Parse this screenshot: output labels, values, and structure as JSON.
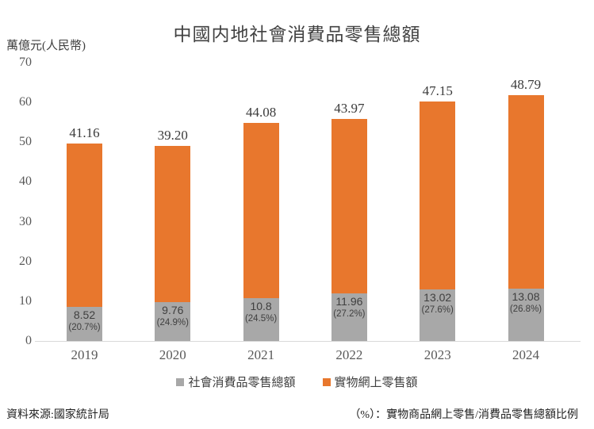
{
  "chart": {
    "title": "中國内地社會消費品零售總額",
    "y_unit_label": "萬億元(人民幣)"
  },
  "footer": {
    "source": "資料來源:國家統計局",
    "note": "（%）：實物商品網上零售/消費品零售總額比例"
  },
  "colors": {
    "orange": "#e8772d",
    "gray": "#a8a8a8",
    "axis_line": "#d9d9d9",
    "tick_text": "#595959",
    "label_text": "#3f3f3f"
  },
  "chart_data": {
    "type": "bar",
    "stacked": true,
    "title": "中國内地社會消費品零售總額",
    "xlabel": "",
    "ylabel": "萬億元(人民幣)",
    "ylim": [
      0,
      70
    ],
    "yticks": [
      0,
      10,
      20,
      30,
      40,
      50,
      60,
      70
    ],
    "grid": false,
    "legend_position": "bottom",
    "categories": [
      "2019",
      "2020",
      "2021",
      "2022",
      "2023",
      "2024"
    ],
    "series": [
      {
        "name": "社會消費品零售總額",
        "color": "gray",
        "values": [
          8.52,
          9.76,
          10.8,
          11.96,
          13.02,
          13.08
        ],
        "labels": [
          "8.52",
          "9.76",
          "10.8",
          "11.96",
          "13.02",
          "13.08"
        ],
        "pct_labels": [
          "(20.7%)",
          "(24.9%)",
          "(24.5%)",
          "(27.2%)",
          "(27.6%)",
          "(26.8%)"
        ]
      },
      {
        "name": "實物網上零售額",
        "color": "orange",
        "values": [
          41.16,
          39.2,
          44.08,
          43.97,
          47.15,
          48.79
        ],
        "labels": [
          "41.16",
          "39.20",
          "44.08",
          "43.97",
          "47.15",
          "48.79"
        ]
      }
    ]
  }
}
